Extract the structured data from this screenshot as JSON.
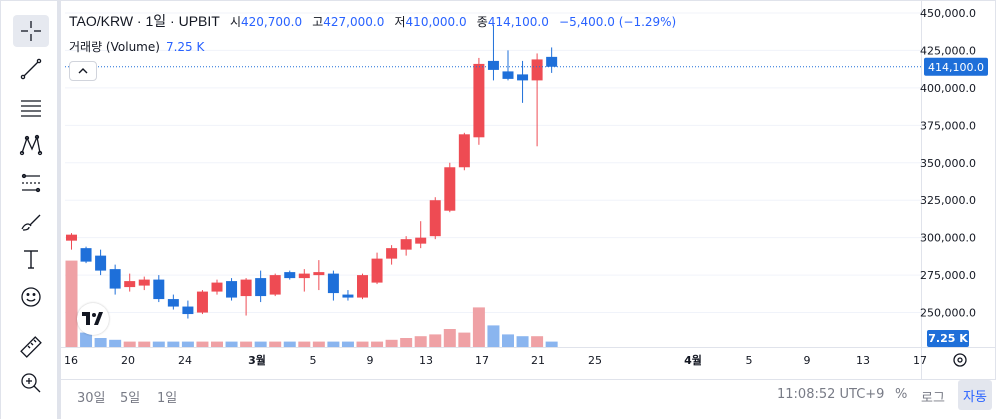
{
  "header": {
    "symbol": "TAO/KRW · 1일 · UPBIT",
    "open_label": "시",
    "open": "420,700.0",
    "high_label": "고",
    "high": "427,000.0",
    "low_label": "저",
    "low": "410,000.0",
    "close_label": "종",
    "close": "414,100.0",
    "change": "−5,400.0 (−1.29%)"
  },
  "volume_legend": {
    "label": "거래량 (Volume)",
    "value": "7.25 K"
  },
  "toolbar": {
    "tools": [
      {
        "name": "crosshair-icon"
      },
      {
        "name": "trend-line-icon"
      },
      {
        "name": "horizontal-lines-icon"
      },
      {
        "name": "pattern-icon"
      },
      {
        "name": "fib-icon"
      },
      {
        "name": "brush-icon"
      },
      {
        "name": "text-icon"
      },
      {
        "name": "emoji-icon"
      },
      {
        "name": "ruler-icon"
      },
      {
        "name": "zoom-in-icon"
      }
    ]
  },
  "bottom_bar": {
    "ranges": [
      "30일",
      "5일",
      "1일"
    ],
    "time": "11:08:52 UTC+9",
    "percent": "%",
    "log": "로그",
    "auto": "자동"
  },
  "colors": {
    "up": "#ee4b53",
    "down": "#1e6fd9",
    "vol_up": "#efa1a5",
    "vol_down": "#8ab5ef",
    "price_line": "#1e6fd9",
    "accent": "#2962ff"
  },
  "chart_data": {
    "type": "candlestick",
    "y_ticks": [
      "450,000.0",
      "425,000.0",
      "400,000.0",
      "375,000.0",
      "350,000.0",
      "325,000.0",
      "300,000.0",
      "275,000.0",
      "250,000.0"
    ],
    "ylim": [
      227000,
      458000
    ],
    "x_tick_labels": [
      "16",
      "20",
      "24",
      "3월",
      "5",
      "9",
      "13",
      "17",
      "21",
      "25",
      "4월",
      "5",
      "9",
      "13",
      "17"
    ],
    "last_price_label": "414,100.0",
    "last_price": 414100,
    "volume_label": "7.25 K",
    "candles": [
      {
        "o": 298000,
        "h": 303000,
        "l": 292000,
        "c": 302000
      },
      {
        "o": 293000,
        "h": 294000,
        "l": 283000,
        "c": 284000
      },
      {
        "o": 288000,
        "h": 292000,
        "l": 275000,
        "c": 278000
      },
      {
        "o": 279000,
        "h": 282000,
        "l": 262000,
        "c": 266000
      },
      {
        "o": 267000,
        "h": 276000,
        "l": 264000,
        "c": 271000
      },
      {
        "o": 268000,
        "h": 274000,
        "l": 265000,
        "c": 272000
      },
      {
        "o": 272000,
        "h": 275000,
        "l": 257000,
        "c": 259000
      },
      {
        "o": 259000,
        "h": 262000,
        "l": 252000,
        "c": 254000
      },
      {
        "o": 254000,
        "h": 258000,
        "l": 246000,
        "c": 249000
      },
      {
        "o": 250000,
        "h": 265000,
        "l": 249000,
        "c": 264000
      },
      {
        "o": 264000,
        "h": 272000,
        "l": 262000,
        "c": 270000
      },
      {
        "o": 271000,
        "h": 273000,
        "l": 258000,
        "c": 260000
      },
      {
        "o": 261000,
        "h": 273000,
        "l": 248000,
        "c": 272000
      },
      {
        "o": 273000,
        "h": 278000,
        "l": 257000,
        "c": 261000
      },
      {
        "o": 262000,
        "h": 276000,
        "l": 261000,
        "c": 275000
      },
      {
        "o": 277000,
        "h": 278000,
        "l": 272000,
        "c": 273000
      },
      {
        "o": 273000,
        "h": 279000,
        "l": 264000,
        "c": 276000
      },
      {
        "o": 275000,
        "h": 285000,
        "l": 265000,
        "c": 277000
      },
      {
        "o": 276000,
        "h": 278000,
        "l": 258000,
        "c": 263000
      },
      {
        "o": 262000,
        "h": 265000,
        "l": 258000,
        "c": 260000
      },
      {
        "o": 260000,
        "h": 276000,
        "l": 259000,
        "c": 275000
      },
      {
        "o": 270000,
        "h": 290000,
        "l": 269000,
        "c": 286000
      },
      {
        "o": 286000,
        "h": 295000,
        "l": 282000,
        "c": 293000
      },
      {
        "o": 292000,
        "h": 301000,
        "l": 288000,
        "c": 299000
      },
      {
        "o": 296000,
        "h": 311000,
        "l": 293000,
        "c": 300000
      },
      {
        "o": 301000,
        "h": 327000,
        "l": 299000,
        "c": 325000
      },
      {
        "o": 318000,
        "h": 350000,
        "l": 317000,
        "c": 347000
      },
      {
        "o": 347000,
        "h": 370000,
        "l": 345000,
        "c": 369000
      },
      {
        "o": 367000,
        "h": 420000,
        "l": 362000,
        "c": 416000
      },
      {
        "o": 418000,
        "h": 442000,
        "l": 405000,
        "c": 412000
      },
      {
        "o": 411000,
        "h": 425000,
        "l": 405000,
        "c": 406000
      },
      {
        "o": 409000,
        "h": 418000,
        "l": 390000,
        "c": 405000
      },
      {
        "o": 405000,
        "h": 423000,
        "l": 361000,
        "c": 419000
      },
      {
        "o": 420700,
        "h": 427000,
        "l": 410000,
        "c": 414100
      }
    ],
    "volumes": [
      48,
      8,
      5,
      4,
      3,
      3,
      3,
      3,
      3,
      3,
      3,
      3,
      3,
      3,
      3,
      3,
      3,
      3,
      3,
      3,
      3,
      3,
      4,
      5,
      6,
      7,
      10,
      8,
      22,
      12,
      7,
      6,
      6,
      3
    ]
  }
}
